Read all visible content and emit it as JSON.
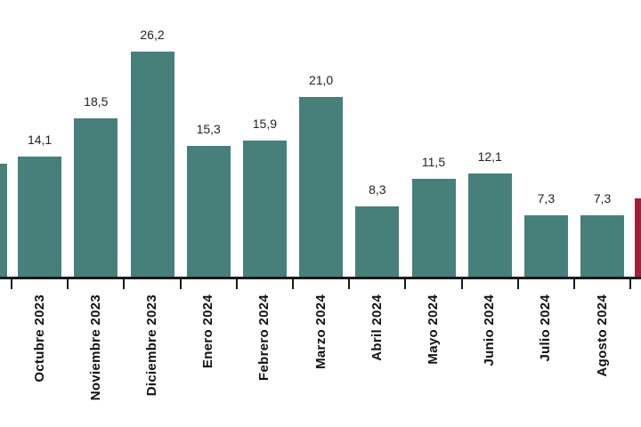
{
  "chart_data": {
    "type": "bar",
    "categories": [
      "Octubre 2023",
      "Noviembre 2023",
      "Diciembre 2023",
      "Enero 2024",
      "Febrero 2024",
      "Marzo 2024",
      "Abril 2024",
      "Mayo 2024",
      "Junio 2024",
      "Julio 2024",
      "Agosto 2024"
    ],
    "values": [
      14.1,
      18.5,
      26.2,
      15.3,
      15.9,
      21.0,
      8.3,
      11.5,
      12.1,
      7.3,
      7.3
    ],
    "value_labels": [
      "14,1",
      "18,5",
      "26,2",
      "15,3",
      "15,9",
      "21,0",
      "8,3",
      "11,5",
      "12,1",
      "7,3",
      "7,3"
    ],
    "decimal_separator": ",",
    "title": "",
    "xlabel": "",
    "ylabel": "",
    "ylim": [
      0,
      28
    ],
    "grid": false,
    "legend": null,
    "x_labels_rotation": 90,
    "ticks_between_categories": true,
    "bar_color": "#47807a",
    "highlight_bar_color": "#a21e37",
    "axis_color": "#1a1a1a",
    "value_label_color": "#222222",
    "x_label_color": "#111111",
    "background_color": "#ffffff",
    "cropped_left_bar": {
      "color": "#47807a",
      "approx_value_from_height": 13.3,
      "value_label_visible": false,
      "category_label_visible": false
    },
    "cropped_right_bar": {
      "color": "#a21e37",
      "approx_value_from_height": 9.2,
      "value_label_visible": false,
      "category_label_visible": false
    }
  }
}
